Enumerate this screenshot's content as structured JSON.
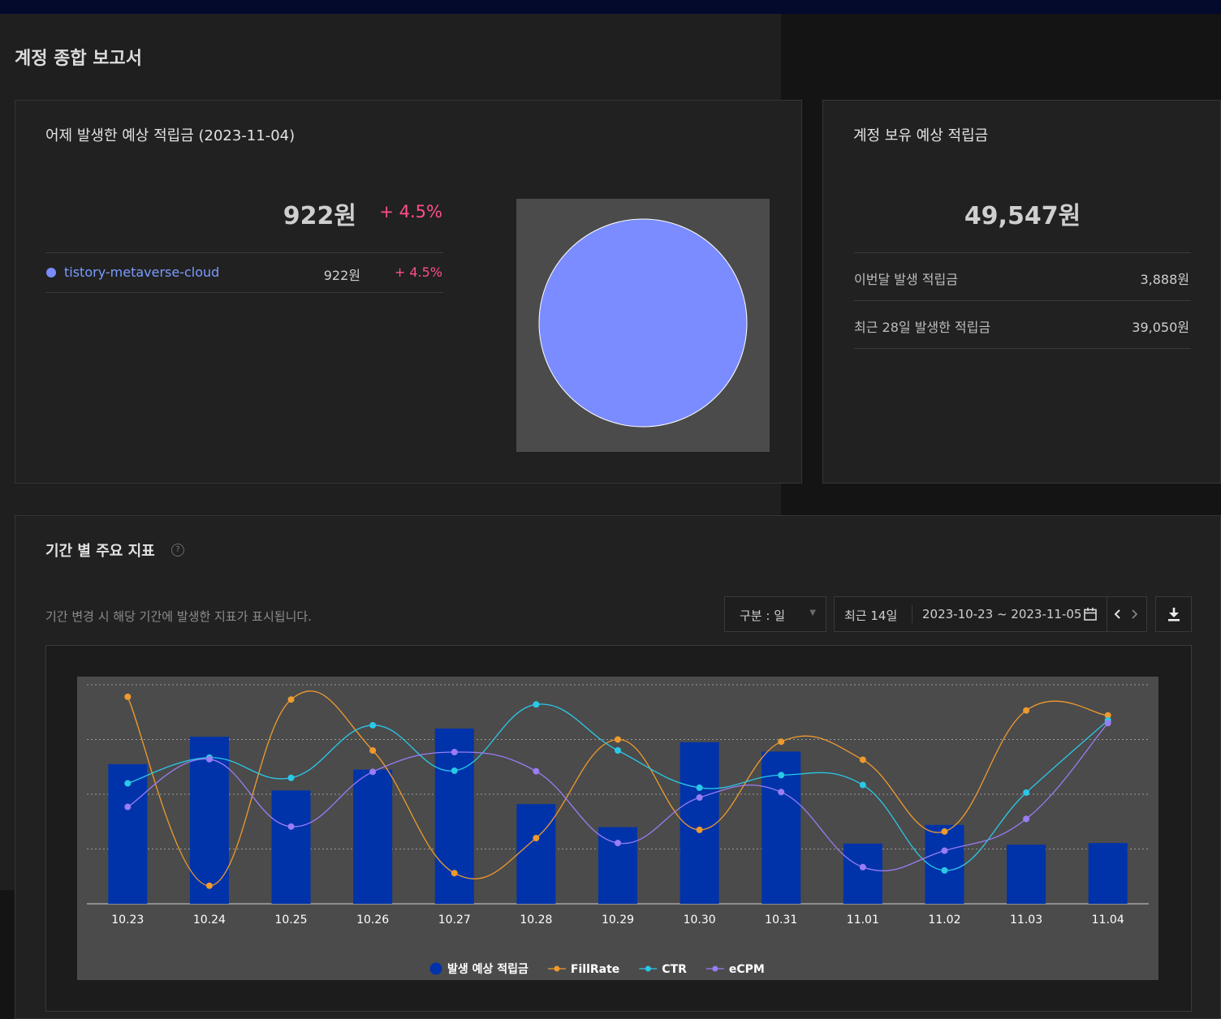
{
  "page_title": "계정 종합 보고서",
  "yesterday_card": {
    "title": "어제 발생한 예상 적립금 (2023-11-04)",
    "amount": "922원",
    "change": "+ 4.5%",
    "site": {
      "name": "tistory-metaverse-cloud",
      "amount": "922원",
      "change": "+ 4.5%",
      "color": "#7a8cff"
    }
  },
  "balance_card": {
    "title": "계정 보유 예상 적립금",
    "amount": "49,547원",
    "rows": [
      {
        "label": "이번달 발생 적립금",
        "value": "3,888원"
      },
      {
        "label": "최근 28일 발생한 적립금",
        "value": "39,050원"
      }
    ]
  },
  "metrics_card": {
    "title": "기간 별 주요 지표",
    "help_icon": "question-circle-icon",
    "description": "기간 변경 시 해당 기간에 발생한 지표가 표시됩니다.",
    "group_select": "구분 : 일",
    "period_label": "최근 14일",
    "date_range": "2023-10-23 ~ 2023-11-05"
  },
  "chart_data": {
    "type": "bar",
    "categories": [
      "10.23",
      "10.24",
      "10.25",
      "10.26",
      "10.27",
      "10.28",
      "10.29",
      "10.30",
      "10.31",
      "11.01",
      "11.02",
      "11.03",
      "11.04"
    ],
    "series": [
      {
        "name": "발생 예상 적립금",
        "kind": "bar",
        "color": "#0033aa",
        "values": [
          2.55,
          3.05,
          2.07,
          2.45,
          3.2,
          1.82,
          1.4,
          2.95,
          2.78,
          1.1,
          1.44,
          1.08,
          1.11
        ]
      },
      {
        "name": "FillRate",
        "kind": "line",
        "color": "#ef9a2e",
        "values": [
          3.78,
          0.33,
          3.73,
          2.8,
          0.56,
          1.2,
          3.0,
          1.35,
          2.96,
          2.63,
          1.32,
          3.53,
          3.44
        ]
      },
      {
        "name": "CTR",
        "kind": "line",
        "color": "#2ac8e8",
        "values": [
          2.2,
          2.67,
          2.3,
          3.26,
          2.43,
          3.64,
          2.8,
          2.12,
          2.35,
          2.17,
          0.61,
          2.03,
          3.35
        ]
      },
      {
        "name": "eCPM",
        "kind": "line",
        "color": "#9a7cf5",
        "values": [
          1.77,
          2.64,
          1.41,
          2.41,
          2.77,
          2.42,
          1.11,
          1.94,
          2.04,
          0.67,
          0.97,
          1.55,
          3.3
        ]
      }
    ],
    "ylim": [
      0,
      4
    ],
    "grid": true,
    "legend": "bottom"
  }
}
